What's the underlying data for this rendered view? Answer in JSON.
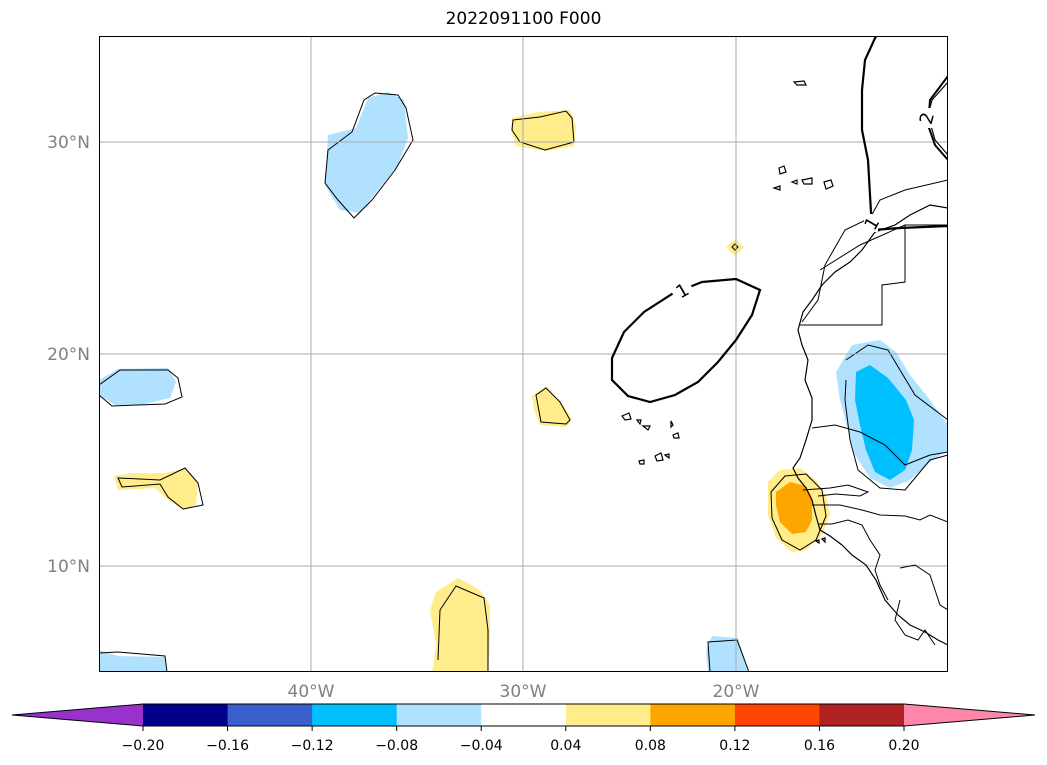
{
  "title": "2022091100 F000",
  "map": {
    "lat_labels": [
      "30°N",
      "20°N",
      "10°N"
    ],
    "lon_labels": [
      "40°W",
      "30°W",
      "20°W"
    ],
    "contour_labels": [
      "1",
      "1",
      "2"
    ],
    "colors": {
      "light_blue": "#b0e2ff",
      "deep_sky_blue": "#00bfff",
      "light_yellow": "#ffec8b",
      "orange": "#ffa500",
      "gridline": "#a9a9a9",
      "grid_label": "#808080"
    }
  },
  "colorbar": {
    "ticks": [
      "−0.20",
      "−0.16",
      "−0.12",
      "−0.08",
      "−0.04",
      "0.04",
      "0.08",
      "0.12",
      "0.16",
      "0.20"
    ],
    "under_color": "#9932cc",
    "over_color": "#ff88aa",
    "colors": [
      "#00008b",
      "#3a5fcd",
      "#00bfff",
      "#b0e2ff",
      "#ffffff",
      "#ffec8b",
      "#ffa500",
      "#ff4500",
      "#b22222"
    ]
  }
}
